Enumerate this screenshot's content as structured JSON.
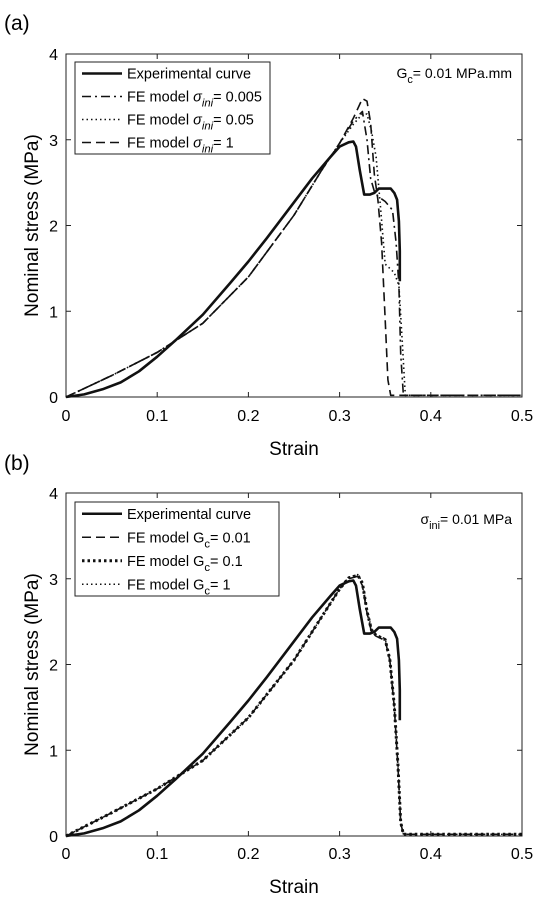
{
  "chart_data": [
    {
      "type": "line",
      "panel_label": "(a)",
      "xlabel": "Strain",
      "ylabel": "Nominal stress (MPa)",
      "xlim": [
        0,
        0.5
      ],
      "ylim": [
        0,
        4
      ],
      "xticks": [
        "0",
        "0.1",
        "0.2",
        "0.3",
        "0.4",
        "0.5"
      ],
      "yticks": [
        "0",
        "1",
        "2",
        "3",
        "4"
      ],
      "annotation": {
        "main": "G",
        "sub": "c",
        "rest": "= 0.01 MPa.mm"
      },
      "legend_position": "top-left",
      "series": [
        {
          "name": {
            "main": "Experimental curve",
            "sym": "",
            "sub": "",
            "rest": ""
          },
          "style": "solid",
          "width": 2.6,
          "x": [
            0,
            0.02,
            0.04,
            0.06,
            0.08,
            0.1,
            0.12,
            0.15,
            0.18,
            0.2,
            0.22,
            0.25,
            0.27,
            0.29,
            0.3,
            0.31,
            0.315,
            0.318,
            0.322,
            0.327,
            0.333,
            0.338,
            0.343,
            0.35,
            0.356,
            0.36,
            0.363,
            0.365,
            0.366,
            0.366
          ],
          "y": [
            0,
            0.03,
            0.09,
            0.17,
            0.3,
            0.47,
            0.66,
            0.96,
            1.33,
            1.58,
            1.85,
            2.27,
            2.55,
            2.8,
            2.92,
            2.97,
            2.98,
            2.92,
            2.65,
            2.36,
            2.36,
            2.38,
            2.43,
            2.43,
            2.43,
            2.38,
            2.3,
            2.05,
            1.7,
            1.35
          ]
        },
        {
          "name": {
            "main": "FE model ",
            "sym": "σ",
            "sub": "ini",
            "rest": "= 0.005"
          },
          "style": "dashdot",
          "width": 1.6,
          "x": [
            0,
            0.05,
            0.1,
            0.15,
            0.2,
            0.25,
            0.28,
            0.3,
            0.315,
            0.325,
            0.33,
            0.334,
            0.338,
            0.342,
            0.35,
            0.358,
            0.362,
            0.365,
            0.367,
            0.37,
            0.38,
            0.4,
            0.45,
            0.5
          ],
          "y": [
            0,
            0.25,
            0.52,
            0.86,
            1.4,
            2.12,
            2.64,
            2.96,
            3.22,
            3.33,
            3.0,
            2.55,
            2.4,
            2.34,
            2.28,
            2.18,
            1.8,
            1.3,
            0.5,
            0.02,
            0.02,
            0.02,
            0.02,
            0.02
          ]
        },
        {
          "name": {
            "main": "FE model ",
            "sym": "σ",
            "sub": "ini",
            "rest": "= 0.05"
          },
          "style": "dotted",
          "width": 1.6,
          "x": [
            0,
            0.05,
            0.1,
            0.15,
            0.2,
            0.25,
            0.28,
            0.3,
            0.315,
            0.325,
            0.33,
            0.335,
            0.34,
            0.345,
            0.35,
            0.355,
            0.36,
            0.365,
            0.369,
            0.372,
            0.4,
            0.45,
            0.5
          ],
          "y": [
            0,
            0.25,
            0.52,
            0.86,
            1.4,
            2.12,
            2.64,
            2.96,
            3.18,
            3.3,
            3.3,
            3.1,
            2.8,
            2.2,
            1.55,
            1.5,
            1.45,
            1.3,
            0.6,
            0.02,
            0.02,
            0.02,
            0.02
          ]
        },
        {
          "name": {
            "main": "FE model ",
            "sym": "σ",
            "sub": "ini",
            "rest": "= 1"
          },
          "style": "dashed",
          "width": 1.6,
          "x": [
            0,
            0.05,
            0.1,
            0.15,
            0.2,
            0.25,
            0.28,
            0.3,
            0.315,
            0.325,
            0.33,
            0.334,
            0.338,
            0.342,
            0.346,
            0.35,
            0.353,
            0.356,
            0.4,
            0.45,
            0.5
          ],
          "y": [
            0,
            0.25,
            0.52,
            0.86,
            1.4,
            2.12,
            2.64,
            2.96,
            3.25,
            3.48,
            3.45,
            3.2,
            2.6,
            2.3,
            1.8,
            0.9,
            0.2,
            0.02,
            0.02,
            0.02,
            0.02
          ]
        }
      ]
    },
    {
      "type": "line",
      "panel_label": "(b)",
      "xlabel": "Strain",
      "ylabel": "Nominal stress (MPa)",
      "xlim": [
        0,
        0.5
      ],
      "ylim": [
        0,
        4
      ],
      "xticks": [
        "0",
        "0.1",
        "0.2",
        "0.3",
        "0.4",
        "0.5"
      ],
      "yticks": [
        "0",
        "1",
        "2",
        "3",
        "4"
      ],
      "annotation": {
        "main": "σ",
        "sub": "ini",
        "rest": "= 0.01 MPa"
      },
      "legend_position": "top-left",
      "series": [
        {
          "name": {
            "main": "Experimental curve",
            "sym": "",
            "sub": "",
            "rest": ""
          },
          "style": "solid",
          "width": 2.6,
          "x": [
            0,
            0.02,
            0.04,
            0.06,
            0.08,
            0.1,
            0.12,
            0.15,
            0.18,
            0.2,
            0.22,
            0.25,
            0.27,
            0.29,
            0.3,
            0.31,
            0.315,
            0.318,
            0.322,
            0.327,
            0.333,
            0.338,
            0.343,
            0.35,
            0.356,
            0.36,
            0.363,
            0.365,
            0.366,
            0.366
          ],
          "y": [
            0,
            0.03,
            0.09,
            0.17,
            0.3,
            0.47,
            0.66,
            0.96,
            1.33,
            1.58,
            1.85,
            2.27,
            2.55,
            2.8,
            2.92,
            2.97,
            2.98,
            2.92,
            2.65,
            2.36,
            2.36,
            2.38,
            2.43,
            2.43,
            2.43,
            2.38,
            2.3,
            2.05,
            1.7,
            1.35
          ]
        },
        {
          "name": {
            "main": "FE model G",
            "sym": "",
            "sub": "c",
            "rest": "= 0.01"
          },
          "style": "dashed",
          "width": 1.6,
          "x": [
            0,
            0.05,
            0.1,
            0.15,
            0.2,
            0.25,
            0.28,
            0.3,
            0.31,
            0.32,
            0.325,
            0.33,
            0.335,
            0.34,
            0.35,
            0.355,
            0.36,
            0.364,
            0.367,
            0.37,
            0.4,
            0.45,
            0.5
          ],
          "y": [
            0,
            0.27,
            0.55,
            0.88,
            1.38,
            2.05,
            2.55,
            2.88,
            3.0,
            3.03,
            2.92,
            2.6,
            2.38,
            2.33,
            2.28,
            2.05,
            1.5,
            0.8,
            0.15,
            0.02,
            0.02,
            0.02,
            0.02
          ]
        },
        {
          "name": {
            "main": "FE model G",
            "sym": "",
            "sub": "c",
            "rest": "= 0.1"
          },
          "style": "thickdotted",
          "width": 3.0,
          "x": [
            0,
            0.05,
            0.1,
            0.15,
            0.2,
            0.25,
            0.28,
            0.3,
            0.31,
            0.32,
            0.325,
            0.33,
            0.335,
            0.34,
            0.35,
            0.355,
            0.36,
            0.364,
            0.367,
            0.37,
            0.4,
            0.45,
            0.5
          ],
          "y": [
            0,
            0.27,
            0.55,
            0.88,
            1.38,
            2.05,
            2.55,
            2.88,
            3.01,
            3.04,
            2.95,
            2.62,
            2.4,
            2.34,
            2.29,
            2.06,
            1.52,
            0.82,
            0.16,
            0.02,
            0.02,
            0.02,
            0.02
          ]
        },
        {
          "name": {
            "main": "FE model G",
            "sym": "",
            "sub": "c",
            "rest": "= 1"
          },
          "style": "dotted",
          "width": 1.4,
          "x": [
            0,
            0.05,
            0.1,
            0.15,
            0.2,
            0.25,
            0.28,
            0.3,
            0.31,
            0.32,
            0.325,
            0.33,
            0.335,
            0.34,
            0.35,
            0.355,
            0.36,
            0.364,
            0.367,
            0.37,
            0.4,
            0.45,
            0.5
          ],
          "y": [
            0,
            0.27,
            0.55,
            0.88,
            1.38,
            2.05,
            2.55,
            2.88,
            3.02,
            3.05,
            2.96,
            2.64,
            2.42,
            2.35,
            2.3,
            2.07,
            1.53,
            0.83,
            0.17,
            0.02,
            0.02,
            0.02,
            0.02
          ]
        }
      ]
    }
  ]
}
